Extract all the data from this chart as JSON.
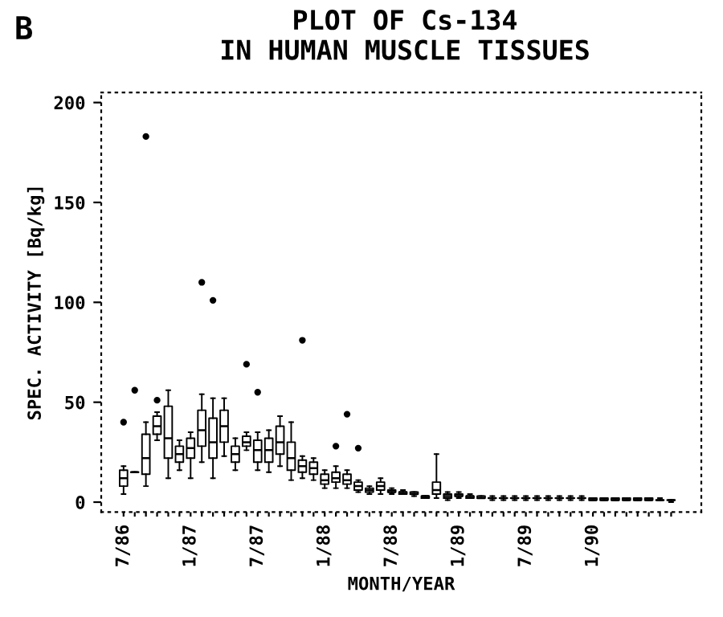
{
  "chart_data": {
    "type": "box",
    "title": "PLOT OF Cs-134\nIN HUMAN MUSCLE TISSUES",
    "xlabel": "MONTH/YEAR",
    "ylabel": "SPEC. ACTIVITY [Bq/kg]",
    "annotations": [
      "B"
    ],
    "categories": [
      "7/86",
      null,
      null,
      null,
      null,
      null,
      "1/87",
      null,
      null,
      null,
      null,
      null,
      "7/87",
      null,
      null,
      null,
      null,
      null,
      "1/88",
      null,
      null,
      null,
      null,
      null,
      "7/88",
      null,
      null,
      null,
      null,
      null,
      "1/89",
      null,
      null,
      null,
      null,
      null,
      "7/89",
      null,
      null,
      null,
      null,
      null,
      "1/90",
      null,
      null,
      null,
      null,
      null,
      null,
      null
    ],
    "boxes": [
      {
        "low": 4,
        "q1": 8,
        "median": 12,
        "q3": 16,
        "high": 18,
        "outliers": [
          40
        ]
      },
      {
        "low": 15,
        "q1": 15,
        "median": 15,
        "q3": 15,
        "high": 15,
        "outliers": [
          56
        ]
      },
      {
        "low": 8,
        "q1": 14,
        "median": 22,
        "q3": 34,
        "high": 40,
        "outliers": [
          183
        ]
      },
      {
        "low": 31,
        "q1": 34,
        "median": 38,
        "q3": 43,
        "high": 45,
        "outliers": [
          51
        ]
      },
      {
        "low": 12,
        "q1": 22,
        "median": 32,
        "q3": 48,
        "high": 56
      },
      {
        "low": 16,
        "q1": 20,
        "median": 24,
        "q3": 28,
        "high": 31
      },
      {
        "low": 12,
        "q1": 22,
        "median": 27,
        "q3": 32,
        "high": 35
      },
      {
        "low": 20,
        "q1": 28,
        "median": 36,
        "q3": 46,
        "high": 54,
        "outliers": [
          110
        ]
      },
      {
        "low": 12,
        "q1": 22,
        "median": 30,
        "q3": 42,
        "high": 52,
        "outliers": [
          101
        ]
      },
      {
        "low": 23,
        "q1": 30,
        "median": 38,
        "q3": 46,
        "high": 52
      },
      {
        "low": 16,
        "q1": 20,
        "median": 24,
        "q3": 28,
        "high": 32
      },
      {
        "low": 26,
        "q1": 28,
        "median": 30,
        "q3": 33,
        "high": 35,
        "outliers": [
          69
        ]
      },
      {
        "low": 16,
        "q1": 20,
        "median": 26,
        "q3": 31,
        "high": 35,
        "outliers": [
          55
        ]
      },
      {
        "low": 15,
        "q1": 20,
        "median": 26,
        "q3": 32,
        "high": 36
      },
      {
        "low": 18,
        "q1": 24,
        "median": 30,
        "q3": 38,
        "high": 43
      },
      {
        "low": 11,
        "q1": 16,
        "median": 22,
        "q3": 30,
        "high": 40
      },
      {
        "low": 12,
        "q1": 15,
        "median": 18,
        "q3": 21,
        "high": 23,
        "outliers": [
          81
        ]
      },
      {
        "low": 11,
        "q1": 14,
        "median": 17,
        "q3": 20,
        "high": 22
      },
      {
        "low": 7,
        "q1": 9,
        "median": 11,
        "q3": 14,
        "high": 16
      },
      {
        "low": 7,
        "q1": 10,
        "median": 12,
        "q3": 15,
        "high": 18,
        "outliers": [
          28
        ]
      },
      {
        "low": 7,
        "q1": 9,
        "median": 11,
        "q3": 14,
        "high": 16,
        "outliers": [
          44
        ]
      },
      {
        "low": 5,
        "q1": 6,
        "median": 8,
        "q3": 10,
        "high": 11,
        "outliers": [
          27
        ]
      },
      {
        "low": 4,
        "q1": 5,
        "median": 6,
        "q3": 7,
        "high": 8
      },
      {
        "low": 4,
        "q1": 6,
        "median": 8,
        "q3": 10,
        "high": 12
      },
      {
        "low": 4,
        "q1": 5,
        "median": 5,
        "q3": 6,
        "high": 7
      },
      {
        "low": 4,
        "q1": 4,
        "median": 5,
        "q3": 5,
        "high": 6
      },
      {
        "low": 3,
        "q1": 4,
        "median": 4,
        "q3": 5,
        "high": 5
      },
      {
        "low": 2,
        "q1": 2,
        "median": 3,
        "q3": 3,
        "high": 3
      },
      {
        "low": 2,
        "q1": 4,
        "median": 6,
        "q3": 10,
        "high": 24
      },
      {
        "low": 1,
        "q1": 2,
        "median": 3,
        "q3": 4,
        "high": 5
      },
      {
        "low": 2,
        "q1": 3,
        "median": 3,
        "q3": 4,
        "high": 5
      },
      {
        "low": 2,
        "q1": 2,
        "median": 3,
        "q3": 3,
        "high": 4
      },
      {
        "low": 2,
        "q1": 2,
        "median": 2,
        "q3": 3,
        "high": 3
      },
      {
        "low": 1,
        "q1": 2,
        "median": 2,
        "q3": 2,
        "high": 3
      },
      {
        "low": 1,
        "q1": 2,
        "median": 2,
        "q3": 2,
        "high": 3
      },
      {
        "low": 1,
        "q1": 2,
        "median": 2,
        "q3": 2,
        "high": 3
      },
      {
        "low": 1,
        "q1": 2,
        "median": 2,
        "q3": 2,
        "high": 3
      },
      {
        "low": 1,
        "q1": 2,
        "median": 2,
        "q3": 2,
        "high": 3
      },
      {
        "low": 1,
        "q1": 2,
        "median": 2,
        "q3": 2,
        "high": 3
      },
      {
        "low": 1,
        "q1": 2,
        "median": 2,
        "q3": 2,
        "high": 3
      },
      {
        "low": 1,
        "q1": 2,
        "median": 2,
        "q3": 2,
        "high": 3
      },
      {
        "low": 1,
        "q1": 2,
        "median": 2,
        "q3": 2,
        "high": 3
      },
      {
        "low": 1,
        "q1": 1,
        "median": 1,
        "q3": 2,
        "high": 2
      },
      {
        "low": 1,
        "q1": 1,
        "median": 1,
        "q3": 2,
        "high": 2
      },
      {
        "low": 1,
        "q1": 1,
        "median": 1,
        "q3": 2,
        "high": 2
      },
      {
        "low": 1,
        "q1": 1,
        "median": 1,
        "q3": 2,
        "high": 2
      },
      {
        "low": 1,
        "q1": 1,
        "median": 1,
        "q3": 2,
        "high": 2
      },
      {
        "low": 1,
        "q1": 1,
        "median": 1,
        "q3": 2,
        "high": 2
      },
      {
        "low": 1,
        "q1": 1,
        "median": 1,
        "q3": 1,
        "high": 2
      },
      {
        "low": 0,
        "q1": 1,
        "median": 1,
        "q3": 1,
        "high": 1
      }
    ],
    "ylim": [
      -5,
      205
    ],
    "yticks": [
      0,
      50,
      100,
      150,
      200
    ],
    "grid": false,
    "legend": false
  }
}
